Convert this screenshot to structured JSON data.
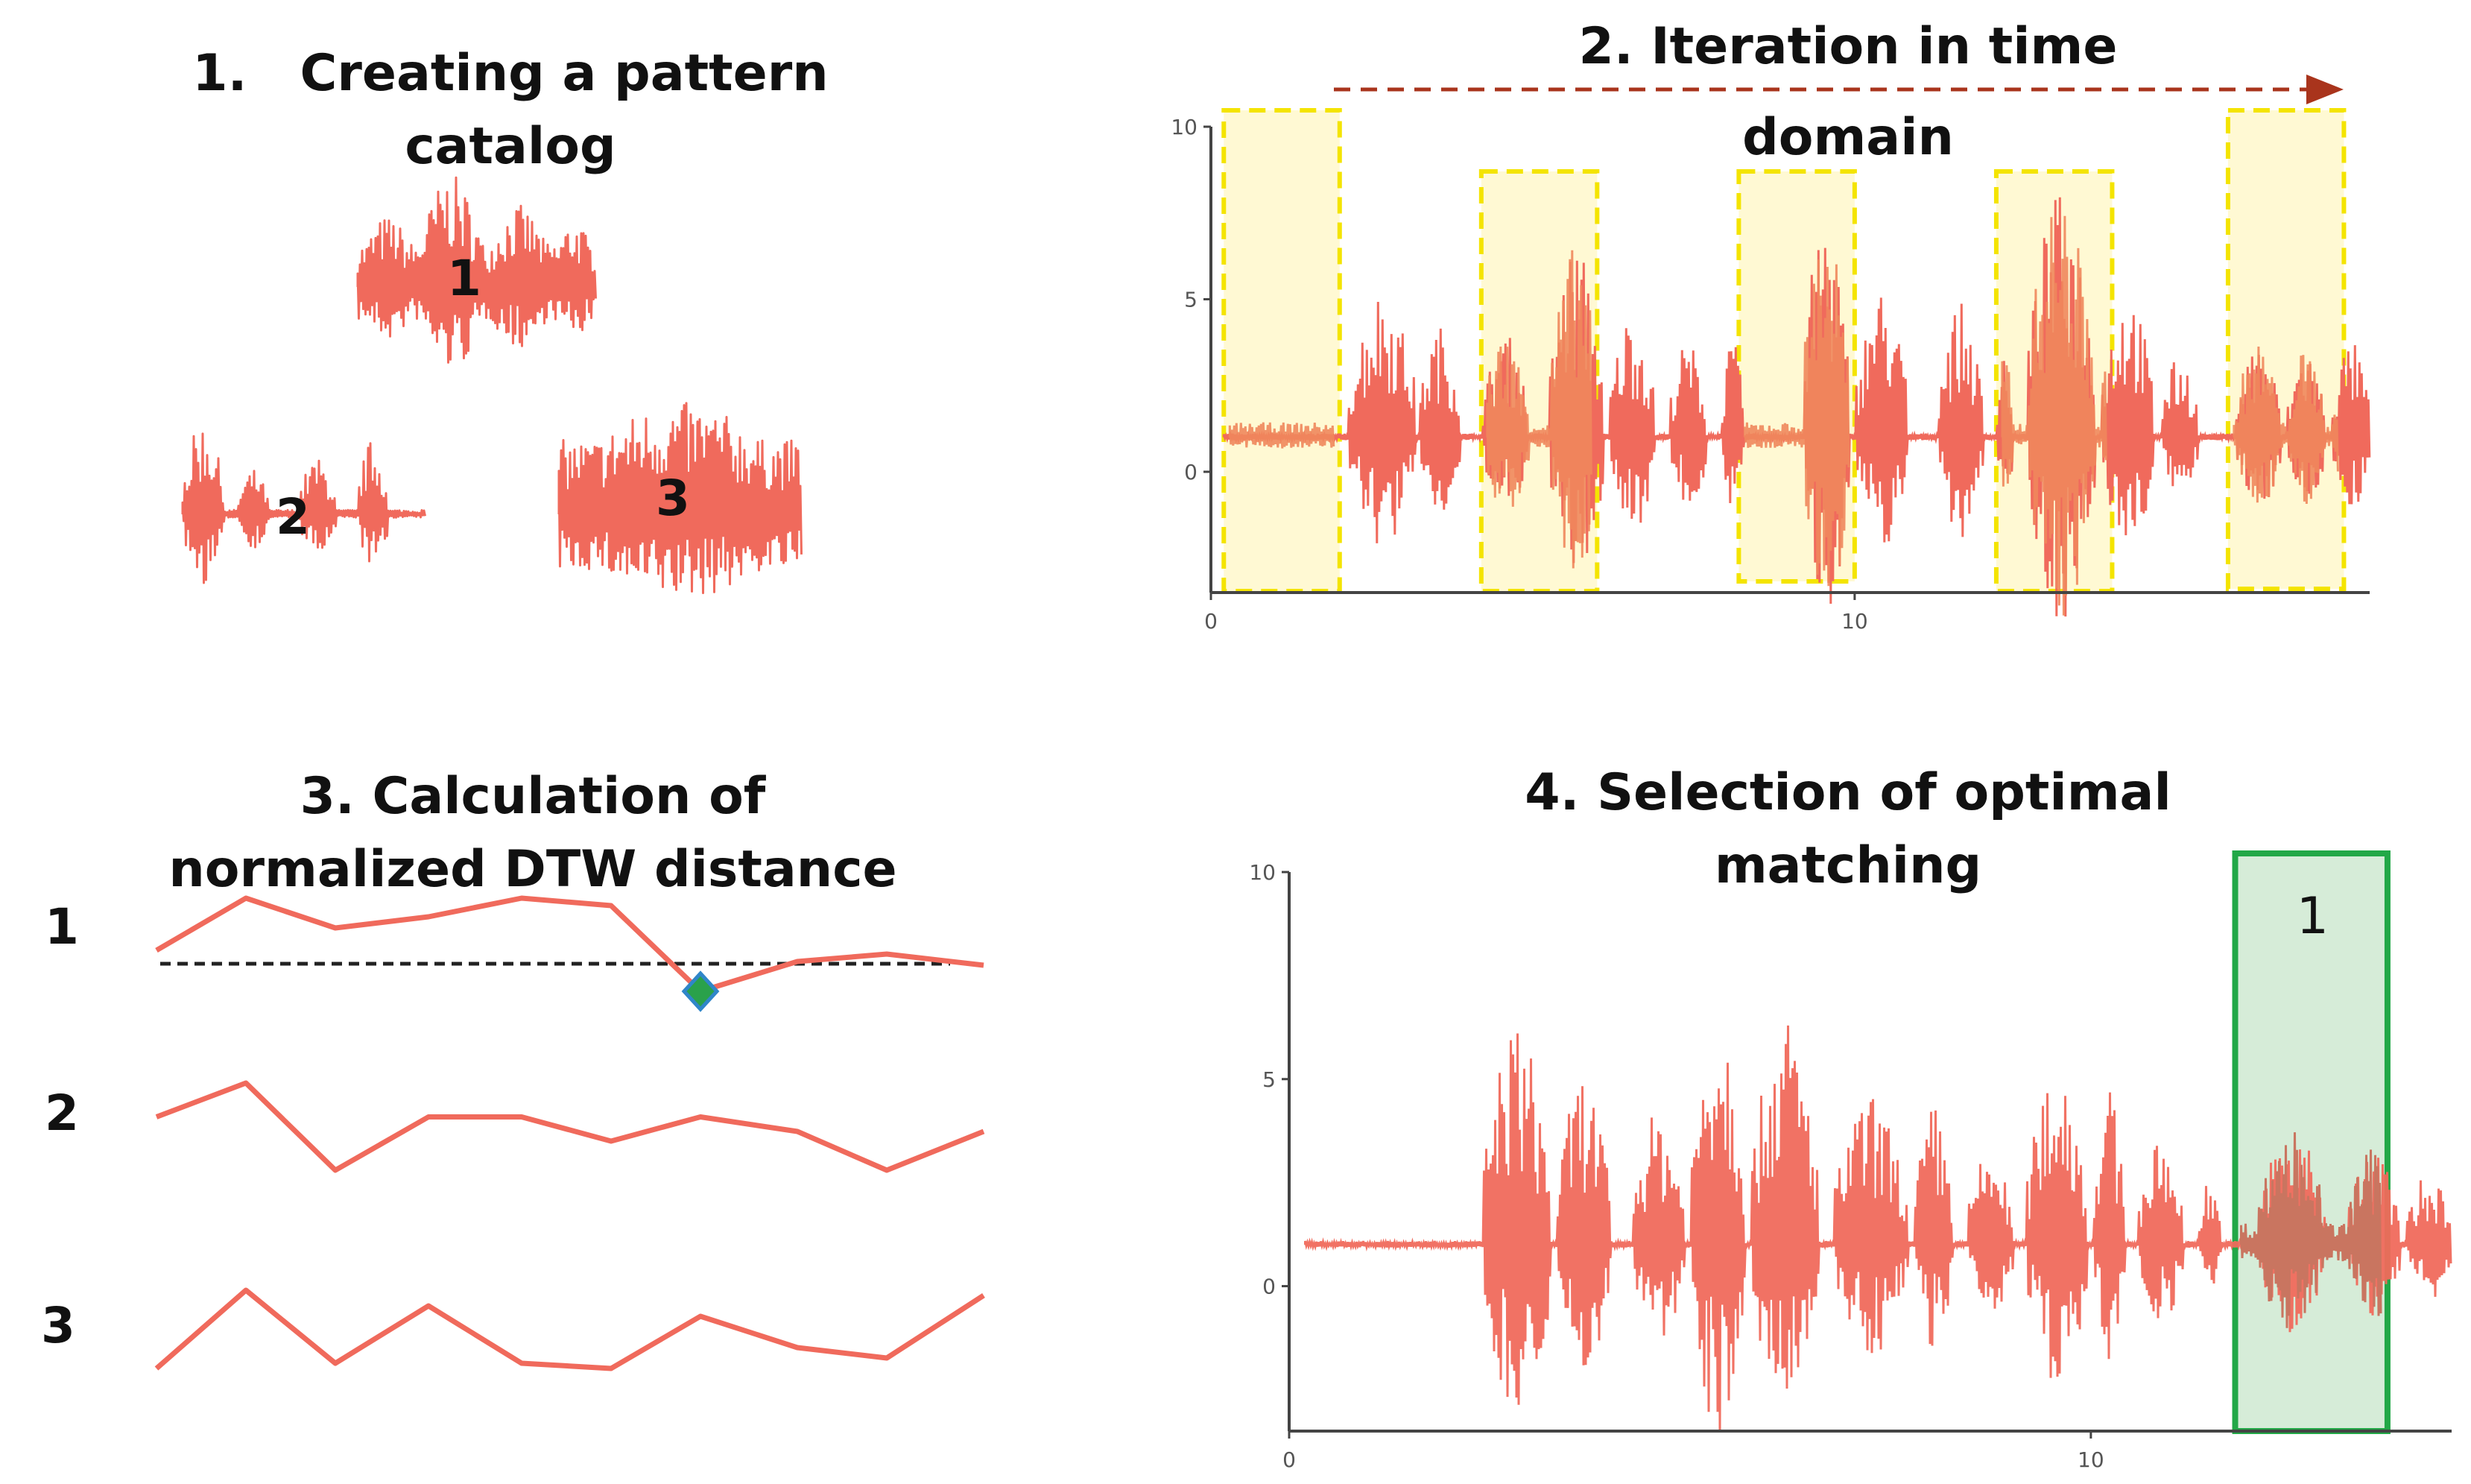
{
  "colors": {
    "signal": "#f06a5c",
    "signal_highlight": "#f0875c",
    "window_fill": "#fff9d3",
    "window_stroke": "#f4e400",
    "arrow": "#a9341c",
    "match_fill": "#d6ecd8",
    "match_stroke": "#22a847",
    "dtw_marker": "#2f86c9",
    "dtw_marker_fill": "#2aa14b"
  },
  "panel1": {
    "title_line1": "1.   Creating a pattern",
    "title_line2": "catalog",
    "patterns": [
      "1",
      "2",
      "3"
    ]
  },
  "panel2": {
    "title_line1": "2. Iteration in time",
    "title_line2": "domain",
    "y_ticks": [
      "10",
      "5",
      "0"
    ],
    "x_ticks": [
      "0",
      "10"
    ]
  },
  "panel3": {
    "title_line1": "3. Calculation of",
    "title_line2": "normalized DTW distance",
    "rows": [
      "1",
      "2",
      "3"
    ]
  },
  "panel4": {
    "title_line1": "4. Selection of optimal",
    "title_line2": "matching",
    "y_ticks": [
      "10",
      "5",
      "0"
    ],
    "x_ticks": [
      "0",
      "10"
    ],
    "match_label": "1"
  },
  "chart_data": [
    {
      "type": "line",
      "title": "2. Iteration in time domain",
      "xlabel": "",
      "ylabel": "",
      "xlim": [
        0,
        18
      ],
      "ylim": [
        -3.5,
        10
      ],
      "x_ticks": [
        0,
        10
      ],
      "y_ticks": [
        0,
        5,
        10
      ],
      "baseline": 1,
      "windows": [
        [
          0.2,
          2.0
        ],
        [
          4.2,
          6.0
        ],
        [
          8.2,
          10.0
        ],
        [
          12.2,
          14.0
        ],
        [
          15.8,
          17.6
        ]
      ]
    },
    {
      "type": "line",
      "title": "4. Selection of optimal matching",
      "xlabel": "",
      "ylabel": "",
      "xlim": [
        0,
        14.5
      ],
      "ylim": [
        -3.5,
        10
      ],
      "x_ticks": [
        0,
        10
      ],
      "y_ticks": [
        0,
        5,
        10
      ],
      "baseline": 1,
      "matched_window": [
        11.8,
        13.7
      ],
      "matched_pattern": "1"
    },
    {
      "type": "line",
      "title": "3. Calculation of normalized DTW distance",
      "series": [
        {
          "name": "1",
          "values": [
            0.25,
            0.95,
            0.55,
            0.7,
            0.95,
            0.85,
            -0.3,
            0.1,
            0.2,
            0.05
          ]
        },
        {
          "name": "2",
          "values": [
            0.55,
            0.9,
            0.0,
            0.55,
            0.55,
            0.3,
            0.55,
            0.4,
            0.0,
            0.4
          ]
        },
        {
          "name": "3",
          "values": [
            0.1,
            0.85,
            0.15,
            0.7,
            0.15,
            0.1,
            0.6,
            0.3,
            0.2,
            0.8
          ]
        }
      ]
    }
  ]
}
